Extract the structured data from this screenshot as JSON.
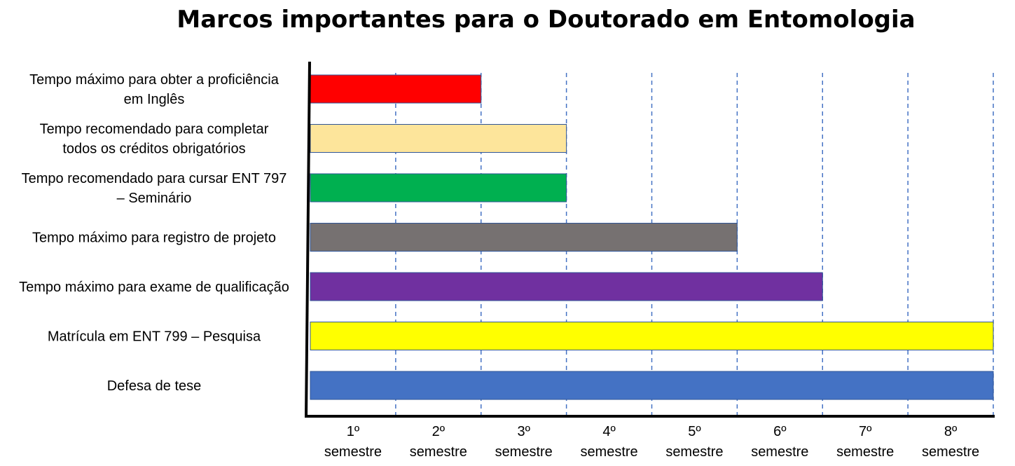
{
  "chart_data": {
    "type": "bar",
    "orientation": "horizontal",
    "title": "Marcos importantes para o Doutorado em Entomologia",
    "xlabel": "",
    "ylabel": "",
    "xlim": [
      0,
      8
    ],
    "grid": "vertical dashed at semester boundaries",
    "categories": [
      [
        "Tempo máximo para obter a proficiência",
        "em Inglês"
      ],
      [
        "Tempo recomendado para completar",
        "todos os créditos obrigatórios"
      ],
      [
        "Tempo recomendado para cursar ENT 797",
        "– Seminário"
      ],
      [
        "Tempo máximo para registro de projeto"
      ],
      [
        "Tempo máximo para exame de qualificação"
      ],
      [
        "Matrícula em ENT 799 – Pesquisa"
      ],
      [
        "Defesa de tese"
      ]
    ],
    "values": [
      2,
      3,
      3,
      5,
      6,
      8,
      8
    ],
    "colors": [
      "#ff0000",
      "#fde59b",
      "#00b050",
      "#767171",
      "#7030a0",
      "#ffff00",
      "#4472c4"
    ],
    "x_ticks": [
      [
        "1º",
        "semestre"
      ],
      [
        "2º",
        "semestre"
      ],
      [
        "3º",
        "semestre"
      ],
      [
        "4º",
        "semestre"
      ],
      [
        "5º",
        "semestre"
      ],
      [
        "6º",
        "semestre"
      ],
      [
        "7º",
        "semestre"
      ],
      [
        "8º",
        "semestre"
      ]
    ]
  }
}
